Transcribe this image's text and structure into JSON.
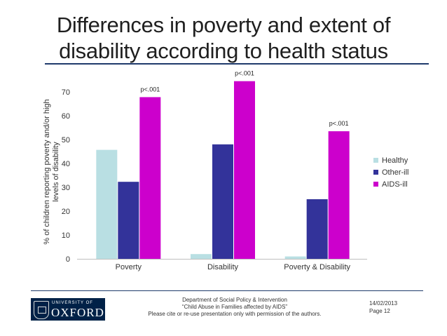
{
  "slide": {
    "title_line1": "Differences in poverty and extent of",
    "title_line2": "disability according to health status"
  },
  "chart_data": {
    "type": "bar",
    "title": "",
    "ylabel_line1": "% of children reporting poverty and/or high",
    "ylabel_line2": "levels of disability",
    "xlabel": "",
    "ylim": [
      0,
      70
    ],
    "yticks": [
      0,
      10,
      20,
      30,
      40,
      50,
      60,
      70
    ],
    "categories": [
      "Poverty",
      "Disability",
      "Poverty & Disability"
    ],
    "series": [
      {
        "name": "Healthy",
        "color": "#b9dfe3",
        "values": [
          45.7,
          2,
          1
        ]
      },
      {
        "name": "Other-ill",
        "color": "#33339a",
        "values": [
          32.3,
          48,
          25
        ]
      },
      {
        "name": "AIDS-ill",
        "color": "#cc00cc",
        "values": [
          67.8,
          74.5,
          53.5
        ]
      }
    ],
    "annotations": [
      {
        "category": "Poverty",
        "text": "p<.001"
      },
      {
        "category": "Disability",
        "text": "p<.001"
      },
      {
        "category": "Poverty & Disability",
        "text": "p<.001"
      }
    ],
    "legend_position": "right",
    "grid": false
  },
  "footer": {
    "logo_university": "UNIVERSITY OF",
    "logo_name": "OXFORD",
    "department": "Department of Social Policy & Intervention",
    "project": "“Child Abuse in Families affected by AIDS”",
    "permission": "Please cite or re-use presentation only with permission of the authors.",
    "date": "14/02/2013",
    "page": "Page 12"
  }
}
